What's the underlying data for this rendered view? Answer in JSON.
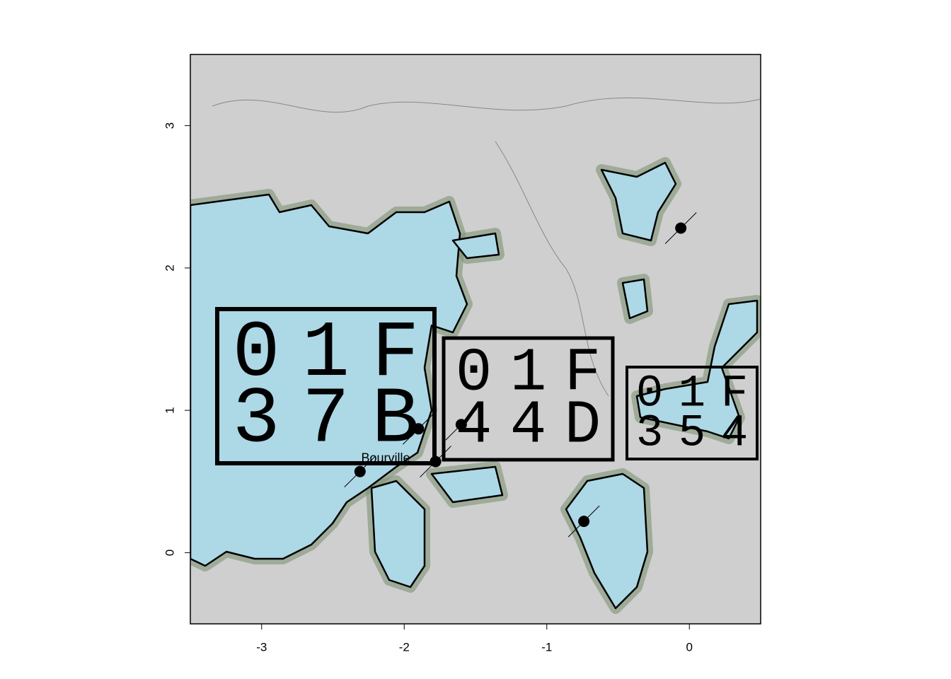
{
  "xlim": [
    -3.5,
    0.5
  ],
  "ylim": [
    -0.5,
    3.5
  ],
  "xticks": [
    -3,
    -2,
    -1,
    0
  ],
  "yticks": [
    0,
    1,
    2,
    3
  ],
  "points": [
    {
      "x": -0.06,
      "y": 2.28
    },
    {
      "x": -2.31,
      "y": 0.57
    },
    {
      "x": -1.9,
      "y": 0.87
    },
    {
      "x": -1.78,
      "y": 0.64
    },
    {
      "x": -1.6,
      "y": 0.9
    },
    {
      "x": -0.74,
      "y": 0.22
    }
  ],
  "place_label": {
    "text": "Bourville",
    "x": -2.13,
    "y": 0.66
  },
  "codes": [
    {
      "lines": [
        "01F",
        "37B"
      ]
    },
    {
      "lines": [
        "01F",
        "44D"
      ]
    },
    {
      "lines": [
        "01F",
        "354"
      ]
    }
  ]
}
